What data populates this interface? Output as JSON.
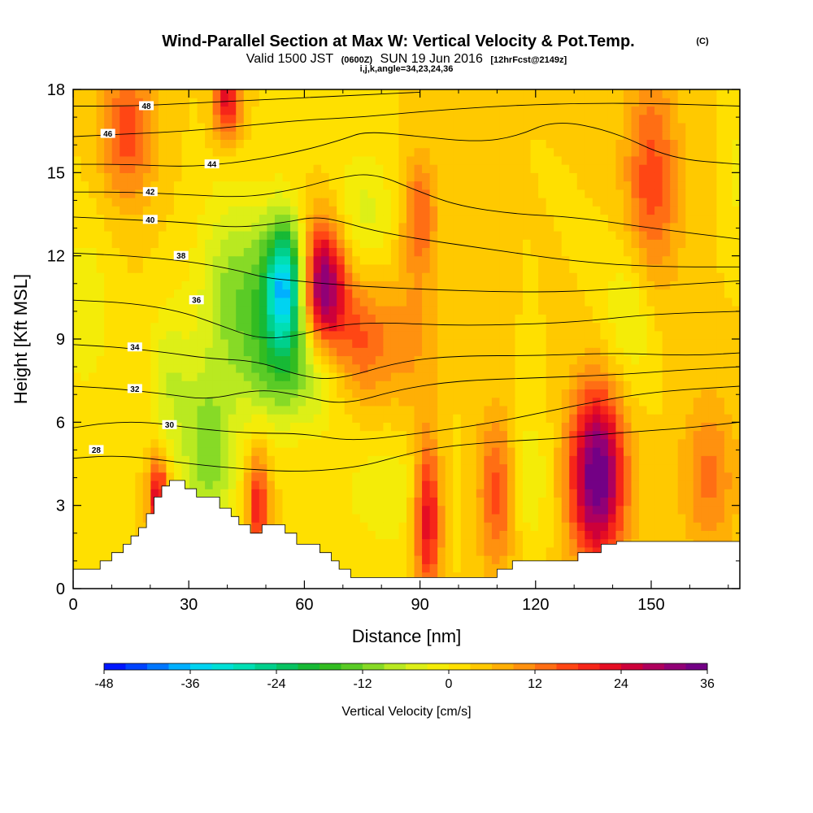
{
  "header": {
    "title": "Wind-Parallel Section at Max W: Vertical Velocity & Pot.Temp.",
    "copyright": "(C)",
    "valid_prefix": "Valid 1500 JST",
    "valid_z": "(0600Z)",
    "valid_date": "SUN 19 Jun 2016",
    "forecast": "[12hrFcst@2149z]",
    "indices": "i,j,k,angle=34,23,24,36"
  },
  "chart_data": {
    "type": "heatmap",
    "title": "Wind-Parallel Section at Max W: Vertical Velocity & Pot.Temp.",
    "xlabel": "Distance [nm]",
    "ylabel": "Height [Kft MSL]",
    "xlim": [
      0,
      173
    ],
    "ylim": [
      0,
      18
    ],
    "x_ticks": [
      "0",
      "30",
      "60",
      "90",
      "120",
      "150"
    ],
    "x_tick_values": [
      0,
      30,
      60,
      90,
      120,
      150
    ],
    "y_ticks": [
      "0",
      "3",
      "6",
      "9",
      "12",
      "15",
      "18"
    ],
    "y_tick_values": [
      0,
      3,
      6,
      9,
      12,
      15,
      18
    ],
    "colorbar": {
      "label": "Vertical Velocity [cm/s]",
      "tick_labels": [
        "-48",
        "-36",
        "-24",
        "-12",
        "0",
        "12",
        "24",
        "36"
      ],
      "tick_values": [
        -48,
        -36,
        -24,
        -12,
        0,
        12,
        24,
        36
      ],
      "min": -48,
      "max": 36,
      "step": 3
    },
    "background_value": 3,
    "vertical_velocity_features": [
      {
        "x": 55,
        "y": 11.0,
        "sx": 3.5,
        "sy": 1.6,
        "value": -32
      },
      {
        "x": 50,
        "y": 10.0,
        "sx": 6,
        "sy": 2.4,
        "value": -12
      },
      {
        "x": 40,
        "y": 10.8,
        "sx": 6,
        "sy": 2.5,
        "value": -10
      },
      {
        "x": 60,
        "y": 7.8,
        "sx": 9,
        "sy": 1.4,
        "value": -12
      },
      {
        "x": 35,
        "y": 4.8,
        "sx": 5,
        "sy": 2.2,
        "value": -14
      },
      {
        "x": 25,
        "y": 7.5,
        "sx": 4,
        "sy": 2.0,
        "value": -8
      },
      {
        "x": 75,
        "y": 13.5,
        "sx": 6,
        "sy": 1.6,
        "value": -7
      },
      {
        "x": 82,
        "y": 3.5,
        "sx": 10,
        "sy": 1.6,
        "value": -5
      },
      {
        "x": 118,
        "y": 4.0,
        "sx": 4,
        "sy": 1.8,
        "value": -6
      },
      {
        "x": 145,
        "y": 10.0,
        "sx": 5,
        "sy": 2.0,
        "value": -8
      },
      {
        "x": 3,
        "y": 10.0,
        "sx": 5,
        "sy": 2.5,
        "value": -5
      },
      {
        "x": 172,
        "y": 15.0,
        "sx": 2,
        "sy": 1.5,
        "value": -4
      },
      {
        "x": 65,
        "y": 11.0,
        "sx": 4,
        "sy": 1.6,
        "value": 30
      },
      {
        "x": 74,
        "y": 8.8,
        "sx": 6,
        "sy": 1.6,
        "value": 14
      },
      {
        "x": 40,
        "y": 17.6,
        "sx": 2.5,
        "sy": 1.0,
        "value": 20
      },
      {
        "x": 14,
        "y": 16.5,
        "sx": 5,
        "sy": 1.8,
        "value": 14
      },
      {
        "x": 22,
        "y": 3.4,
        "sx": 1.8,
        "sy": 1.0,
        "value": 22
      },
      {
        "x": 48,
        "y": 3.0,
        "sx": 2,
        "sy": 1.4,
        "value": 18
      },
      {
        "x": 92,
        "y": 2.6,
        "sx": 2.5,
        "sy": 2.0,
        "value": 22
      },
      {
        "x": 110,
        "y": 3.5,
        "sx": 3.5,
        "sy": 2.0,
        "value": 14
      },
      {
        "x": 136,
        "y": 4.1,
        "sx": 5,
        "sy": 2.2,
        "value": 34
      },
      {
        "x": 90,
        "y": 13.5,
        "sx": 3,
        "sy": 1.5,
        "value": 12
      },
      {
        "x": 150,
        "y": 14.5,
        "sx": 5,
        "sy": 3.0,
        "value": 14
      },
      {
        "x": 88,
        "y": 9.0,
        "sx": 5,
        "sy": 2.0,
        "value": 6
      },
      {
        "x": 165,
        "y": 4.0,
        "sx": 5,
        "sy": 2.0,
        "value": 10
      }
    ],
    "potential_temperature_contours": [
      {
        "label": "28",
        "points": [
          [
            0,
            4.7
          ],
          [
            10,
            4.8
          ],
          [
            20,
            4.7
          ],
          [
            30,
            4.5
          ],
          [
            45,
            4.3
          ],
          [
            60,
            4.2
          ],
          [
            75,
            4.4
          ],
          [
            85,
            4.8
          ],
          [
            95,
            5.1
          ],
          [
            110,
            5.3
          ],
          [
            125,
            5.4
          ],
          [
            140,
            5.6
          ],
          [
            160,
            5.8
          ],
          [
            173,
            6.0
          ]
        ],
        "label_x": 6,
        "label_y": 5.0
      },
      {
        "label": "30",
        "points": [
          [
            0,
            5.8
          ],
          [
            10,
            6.0
          ],
          [
            20,
            6.0
          ],
          [
            30,
            5.8
          ],
          [
            45,
            5.6
          ],
          [
            60,
            5.6
          ],
          [
            72,
            5.3
          ],
          [
            90,
            5.6
          ],
          [
            110,
            6.0
          ],
          [
            130,
            6.6
          ],
          [
            150,
            7.1
          ],
          [
            173,
            7.3
          ]
        ],
        "label_x": 25,
        "label_y": 5.9
      },
      {
        "label": "32",
        "points": [
          [
            0,
            7.3
          ],
          [
            12,
            7.2
          ],
          [
            25,
            7.0
          ],
          [
            35,
            6.8
          ],
          [
            48,
            7.2
          ],
          [
            58,
            7.0
          ],
          [
            70,
            6.6
          ],
          [
            85,
            7.2
          ],
          [
            100,
            7.5
          ],
          [
            120,
            7.6
          ],
          [
            140,
            7.7
          ],
          [
            160,
            7.9
          ],
          [
            173,
            8.0
          ]
        ],
        "label_x": 16,
        "label_y": 7.2
      },
      {
        "label": "34",
        "points": [
          [
            0,
            8.8
          ],
          [
            12,
            8.7
          ],
          [
            25,
            8.5
          ],
          [
            35,
            8.3
          ],
          [
            48,
            8.2
          ],
          [
            58,
            7.7
          ],
          [
            68,
            7.5
          ],
          [
            85,
            8.2
          ],
          [
            100,
            8.4
          ],
          [
            120,
            8.4
          ],
          [
            140,
            8.5
          ],
          [
            160,
            8.4
          ],
          [
            173,
            8.5
          ]
        ],
        "label_x": 16,
        "label_y": 8.7
      },
      {
        "label": "36",
        "points": [
          [
            0,
            10.4
          ],
          [
            15,
            10.3
          ],
          [
            28,
            10.0
          ],
          [
            38,
            9.5
          ],
          [
            48,
            9.0
          ],
          [
            58,
            9.1
          ],
          [
            68,
            9.5
          ],
          [
            80,
            9.6
          ],
          [
            95,
            9.5
          ],
          [
            110,
            9.5
          ],
          [
            130,
            9.6
          ],
          [
            150,
            9.9
          ],
          [
            173,
            10.0
          ]
        ],
        "label_x": 32,
        "label_y": 10.4
      },
      {
        "label": "38",
        "points": [
          [
            0,
            12.1
          ],
          [
            15,
            12.0
          ],
          [
            30,
            11.8
          ],
          [
            42,
            11.5
          ],
          [
            50,
            11.2
          ],
          [
            58,
            11.1
          ],
          [
            65,
            11.0
          ],
          [
            75,
            10.9
          ],
          [
            90,
            10.8
          ],
          [
            110,
            10.7
          ],
          [
            130,
            10.7
          ],
          [
            150,
            10.9
          ],
          [
            173,
            11.1
          ]
        ],
        "label_x": 28,
        "label_y": 12.0
      },
      {
        "label": "40",
        "points": [
          [
            0,
            13.4
          ],
          [
            15,
            13.3
          ],
          [
            30,
            13.2
          ],
          [
            42,
            13.0
          ],
          [
            55,
            13.2
          ],
          [
            62,
            13.4
          ],
          [
            68,
            13.3
          ],
          [
            78,
            12.9
          ],
          [
            90,
            12.6
          ],
          [
            110,
            12.2
          ],
          [
            130,
            11.8
          ],
          [
            150,
            11.6
          ],
          [
            173,
            11.6
          ]
        ],
        "label_x": 20,
        "label_y": 13.3
      },
      {
        "label": "42",
        "points": [
          [
            0,
            14.3
          ],
          [
            15,
            14.3
          ],
          [
            30,
            14.2
          ],
          [
            45,
            14.1
          ],
          [
            58,
            14.4
          ],
          [
            68,
            14.8
          ],
          [
            78,
            15.0
          ],
          [
            90,
            14.3
          ],
          [
            100,
            13.8
          ],
          [
            115,
            13.5
          ],
          [
            130,
            13.4
          ],
          [
            150,
            13.0
          ],
          [
            173,
            12.6
          ]
        ],
        "label_x": 20,
        "label_y": 14.3
      },
      {
        "label": "44",
        "points": [
          [
            0,
            15.3
          ],
          [
            15,
            15.3
          ],
          [
            30,
            15.2
          ],
          [
            45,
            15.4
          ],
          [
            60,
            15.8
          ],
          [
            70,
            16.2
          ],
          [
            76,
            16.5
          ],
          [
            90,
            16.3
          ],
          [
            105,
            16.1
          ],
          [
            115,
            16.3
          ],
          [
            125,
            16.9
          ],
          [
            140,
            16.5
          ],
          [
            155,
            15.5
          ],
          [
            173,
            15.3
          ]
        ],
        "label_x": 36,
        "label_y": 15.3
      },
      {
        "label": "46",
        "points": [
          [
            0,
            16.3
          ],
          [
            15,
            16.4
          ],
          [
            30,
            16.5
          ],
          [
            45,
            16.7
          ],
          [
            60,
            16.9
          ],
          [
            75,
            17.0
          ],
          [
            90,
            17.2
          ],
          [
            110,
            17.4
          ],
          [
            130,
            17.5
          ],
          [
            150,
            17.5
          ],
          [
            173,
            17.4
          ]
        ],
        "label_x": 9,
        "label_y": 16.4
      },
      {
        "label": "48",
        "points": [
          [
            0,
            17.4
          ],
          [
            15,
            17.4
          ],
          [
            30,
            17.5
          ],
          [
            45,
            17.6
          ],
          [
            60,
            17.7
          ],
          [
            75,
            17.8
          ],
          [
            90,
            17.9
          ]
        ],
        "label_x": 19,
        "label_y": 17.4
      }
    ],
    "terrain_height_kft": [
      [
        0,
        0.7
      ],
      [
        4,
        0.7
      ],
      [
        7,
        0.7
      ],
      [
        7,
        1.0
      ],
      [
        10,
        1.0
      ],
      [
        10,
        1.3
      ],
      [
        13,
        1.3
      ],
      [
        13,
        1.6
      ],
      [
        15,
        1.6
      ],
      [
        15,
        1.9
      ],
      [
        17,
        1.9
      ],
      [
        17,
        2.2
      ],
      [
        19,
        2.2
      ],
      [
        19,
        2.7
      ],
      [
        21,
        2.7
      ],
      [
        21,
        3.3
      ],
      [
        23,
        3.3
      ],
      [
        23,
        3.7
      ],
      [
        25,
        3.7
      ],
      [
        25,
        3.9
      ],
      [
        29,
        3.9
      ],
      [
        29,
        3.6
      ],
      [
        32,
        3.6
      ],
      [
        32,
        3.3
      ],
      [
        38,
        3.3
      ],
      [
        38,
        2.9
      ],
      [
        41,
        2.9
      ],
      [
        41,
        2.6
      ],
      [
        43,
        2.6
      ],
      [
        43,
        2.3
      ],
      [
        46,
        2.3
      ],
      [
        46,
        2.0
      ],
      [
        49,
        2.0
      ],
      [
        49,
        2.3
      ],
      [
        55,
        2.3
      ],
      [
        55,
        2.0
      ],
      [
        58,
        2.0
      ],
      [
        58,
        1.6
      ],
      [
        64,
        1.6
      ],
      [
        64,
        1.3
      ],
      [
        67,
        1.3
      ],
      [
        67,
        1.0
      ],
      [
        69,
        1.0
      ],
      [
        69,
        0.7
      ],
      [
        72,
        0.7
      ],
      [
        72,
        0.4
      ],
      [
        110,
        0.4
      ],
      [
        110,
        0.7
      ],
      [
        114,
        0.7
      ],
      [
        114,
        1.0
      ],
      [
        131,
        1.0
      ],
      [
        131,
        1.3
      ],
      [
        137,
        1.3
      ],
      [
        137,
        1.6
      ],
      [
        141,
        1.6
      ],
      [
        141,
        1.7
      ],
      [
        173,
        1.7
      ]
    ]
  }
}
